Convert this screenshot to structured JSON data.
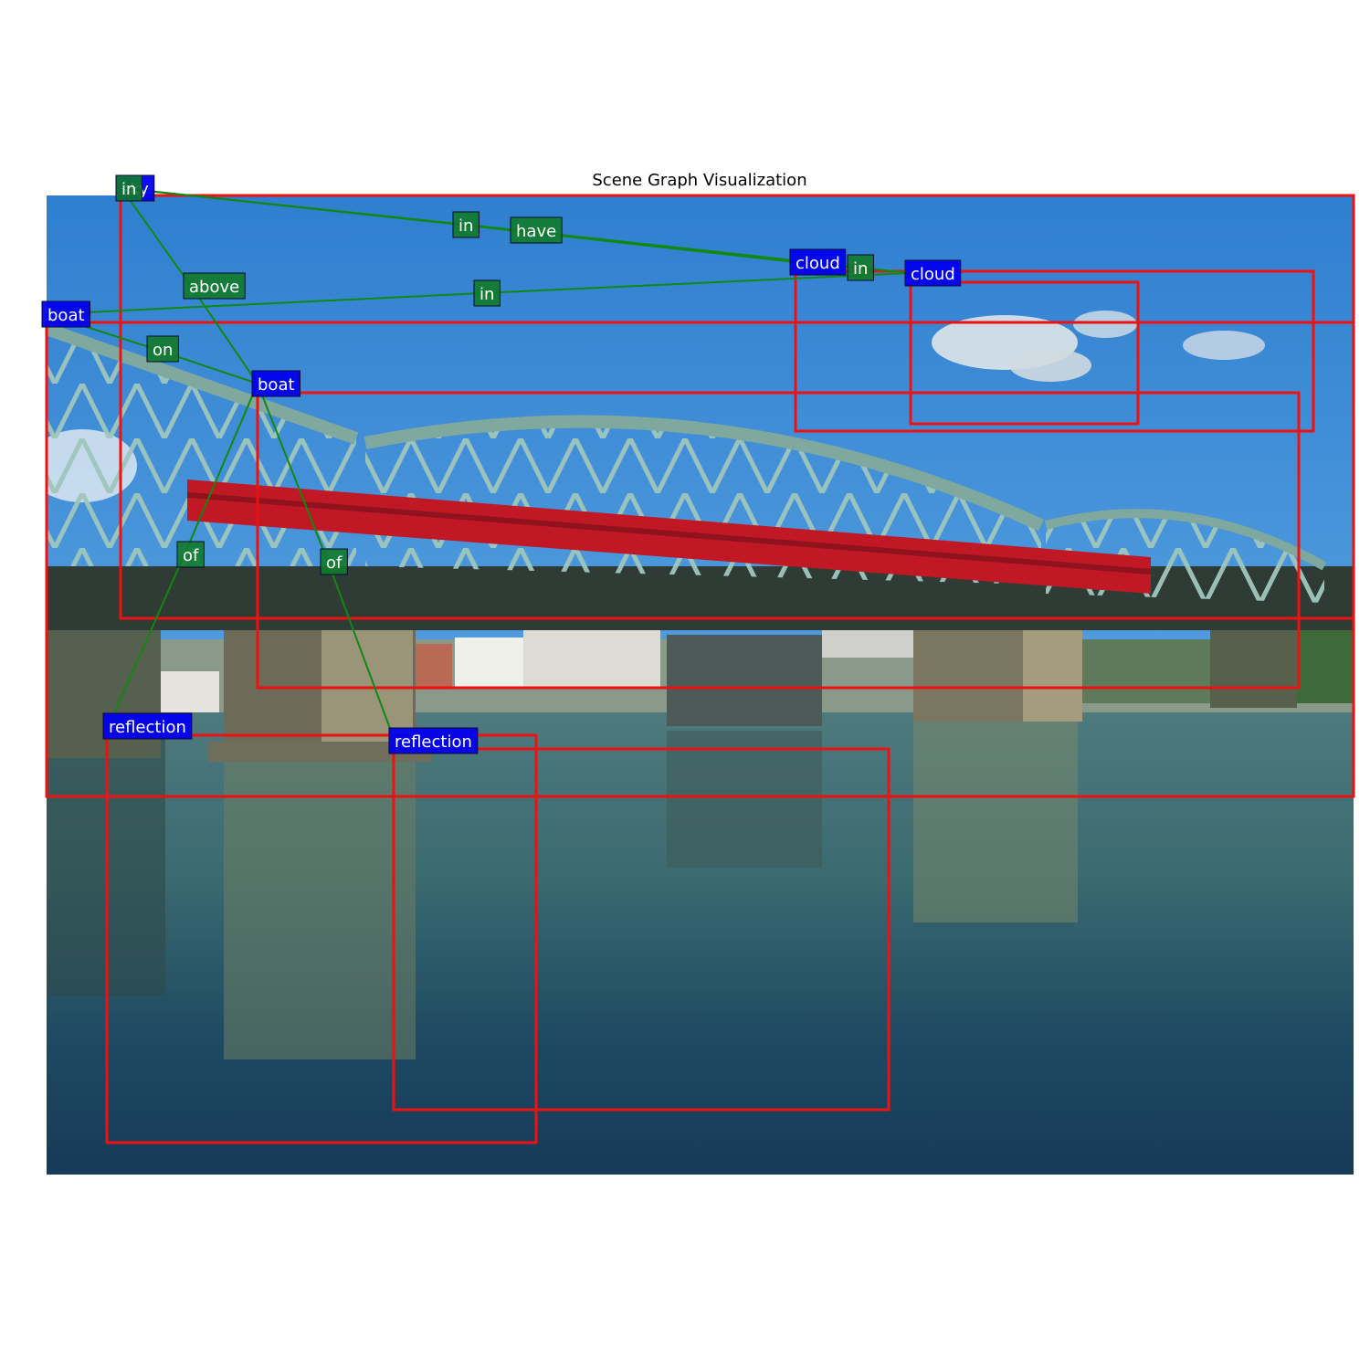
{
  "title": "Scene Graph Visualization",
  "colors": {
    "bbox": "#ee1111",
    "object_label_bg": "#0000ee",
    "relation_label_bg": "#117a2a",
    "edge": "#118811",
    "label_text": "#ffffff"
  },
  "objects": [
    {
      "id": "sky",
      "label": "sky"
    },
    {
      "id": "boat1",
      "label": "boat"
    },
    {
      "id": "boat2",
      "label": "boat"
    },
    {
      "id": "cloud1",
      "label": "cloud"
    },
    {
      "id": "cloud2",
      "label": "cloud"
    },
    {
      "id": "reflection1",
      "label": "reflection"
    },
    {
      "id": "reflection2",
      "label": "reflection"
    }
  ],
  "relations": [
    {
      "id": "r_in_1",
      "label": "in"
    },
    {
      "id": "r_in_2",
      "label": "in"
    },
    {
      "id": "r_have",
      "label": "have"
    },
    {
      "id": "r_in_3",
      "label": "in"
    },
    {
      "id": "r_above",
      "label": "above"
    },
    {
      "id": "r_in_4",
      "label": "in"
    },
    {
      "id": "r_on",
      "label": "on"
    },
    {
      "id": "r_of_1",
      "label": "of"
    },
    {
      "id": "r_of_2",
      "label": "of"
    }
  ]
}
